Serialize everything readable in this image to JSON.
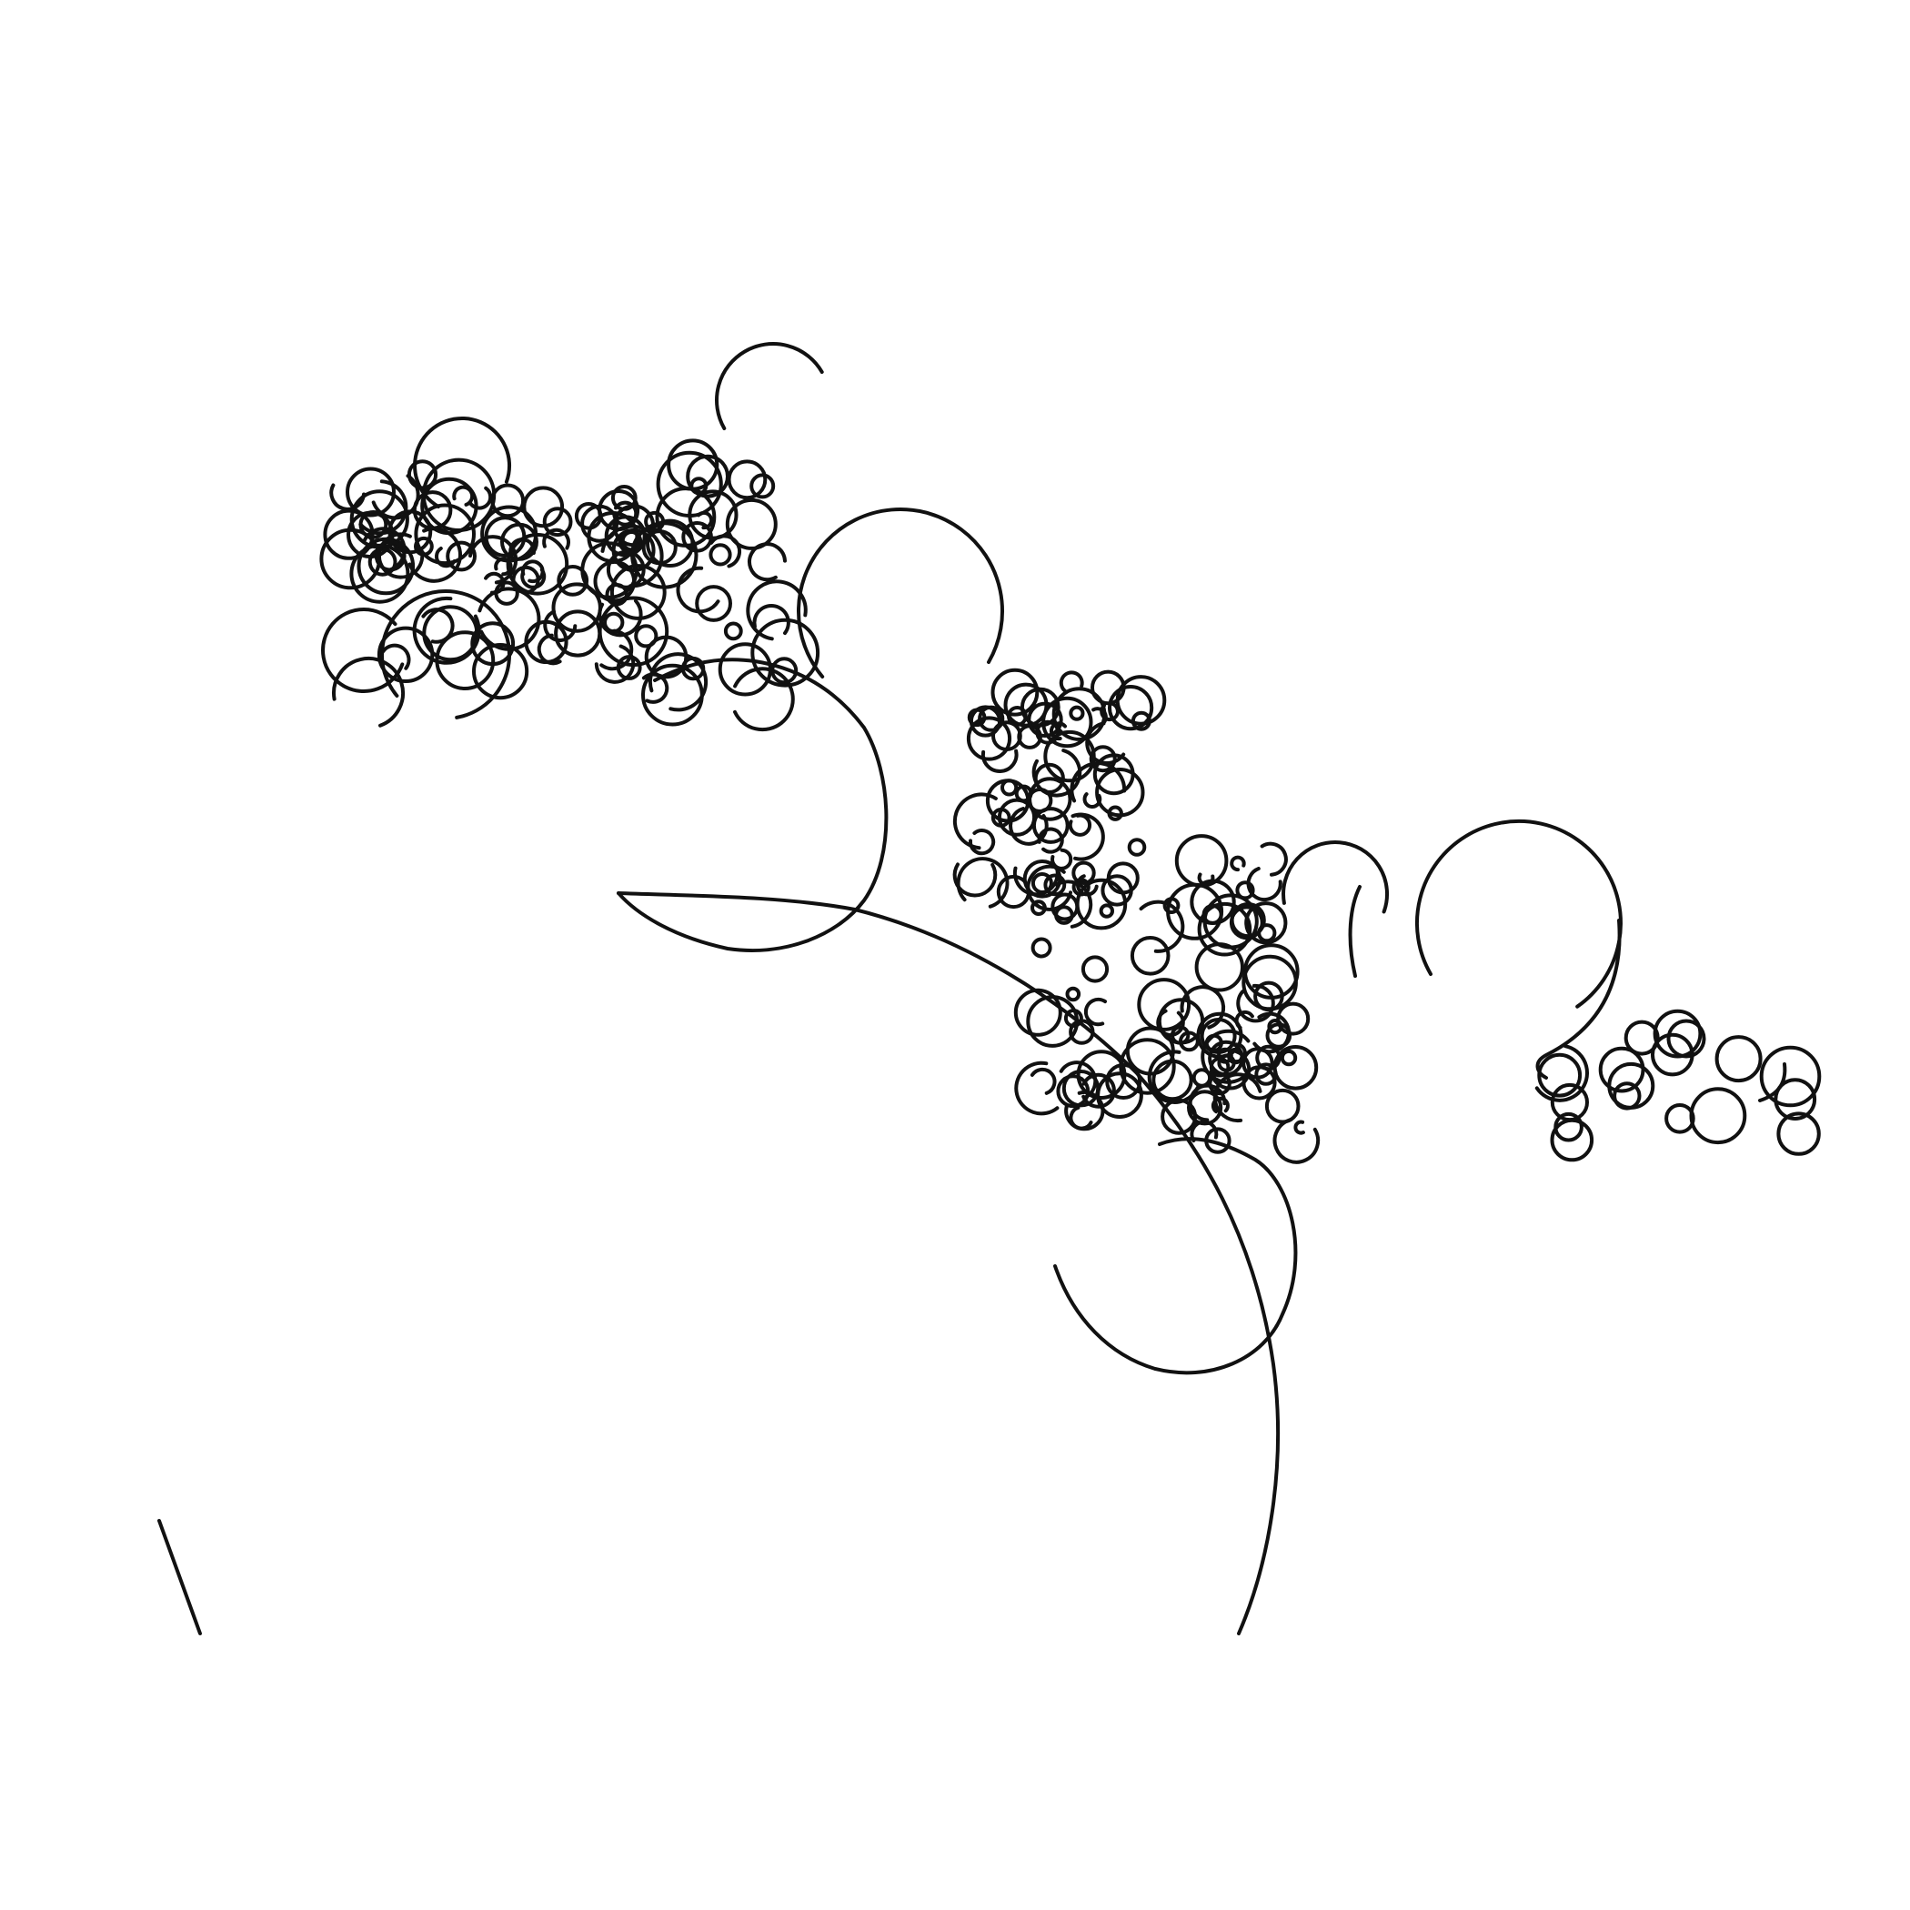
{
  "artwork": {
    "kind": "single continuous line drawing of looping circles",
    "background_color": "#ffffff",
    "stroke_color": "#111111"
  }
}
